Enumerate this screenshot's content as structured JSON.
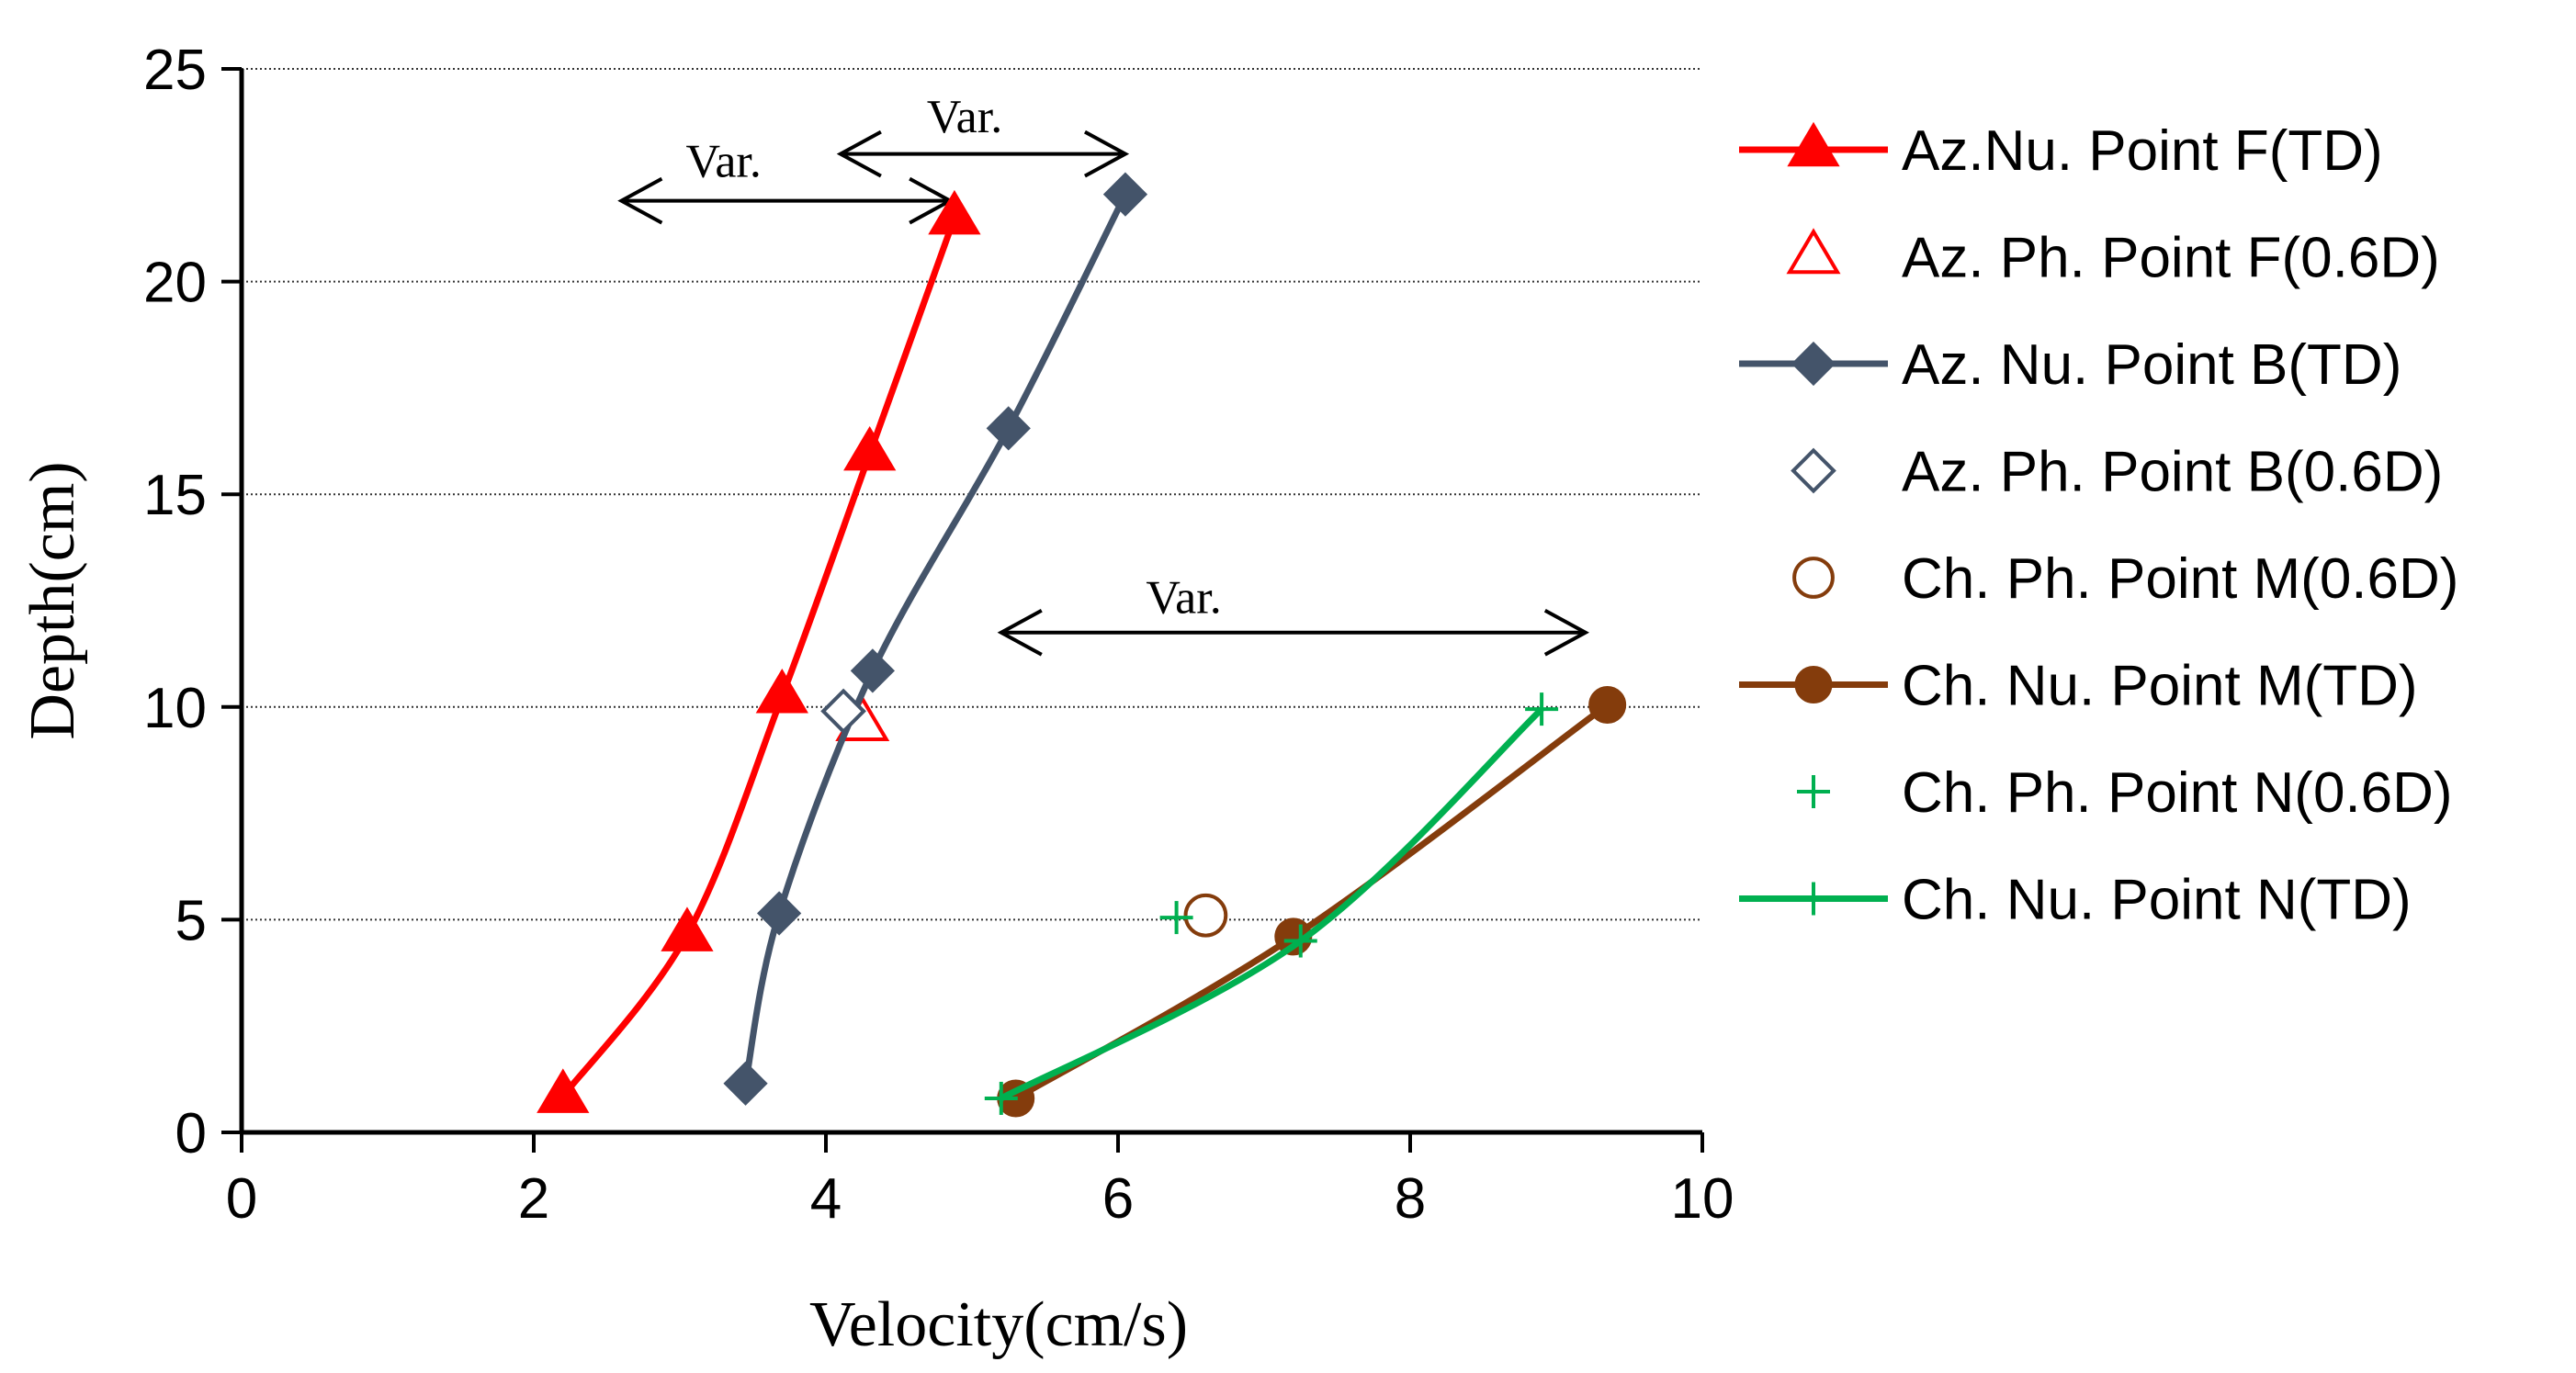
{
  "chart_data": {
    "type": "line",
    "title": "",
    "xlabel": "Velocity(cm/s)",
    "ylabel": "Depth(cm)",
    "xlim": [
      0,
      10
    ],
    "ylim": [
      0,
      25
    ],
    "xticks": [
      0,
      2,
      4,
      6,
      8,
      10
    ],
    "yticks": [
      0,
      5,
      10,
      15,
      20,
      25
    ],
    "grid": "horizontal dotted",
    "legend_position": "right",
    "series": [
      {
        "name": "Az.Nu. Point F(TD)",
        "marker": "triangle-filled",
        "line": true,
        "color": "#ff0000",
        "x": [
          2.2,
          3.05,
          3.7,
          4.3,
          4.88
        ],
        "y": [
          0.85,
          4.65,
          10.25,
          15.95,
          21.5
        ]
      },
      {
        "name": "Az. Ph. Point F(0.6D)",
        "marker": "triangle-open",
        "line": false,
        "color": "#ff0000",
        "x": [
          4.25
        ],
        "y": [
          9.6
        ]
      },
      {
        "name": "Az. Nu. Point B(TD)",
        "marker": "diamond-filled",
        "line": true,
        "color": "#44546a",
        "x": [
          3.45,
          3.68,
          4.32,
          5.25,
          6.05
        ],
        "y": [
          1.15,
          5.15,
          10.85,
          16.55,
          22.05
        ]
      },
      {
        "name": "Az. Ph. Point B(0.6D)",
        "marker": "diamond-open",
        "line": false,
        "color": "#44546a",
        "x": [
          4.12
        ],
        "y": [
          9.9
        ]
      },
      {
        "name": "Ch. Ph. Point M(0.6D)",
        "marker": "circle-open",
        "line": false,
        "color": "#843c0c",
        "x": [
          6.6
        ],
        "y": [
          5.1
        ]
      },
      {
        "name": "Ch. Nu. Point M(TD)",
        "marker": "circle-filled",
        "line": true,
        "color": "#843c0c",
        "x": [
          5.3,
          7.2,
          9.35
        ],
        "y": [
          0.8,
          4.6,
          10.05
        ]
      },
      {
        "name": "Ch. Ph. Point N(0.6D)",
        "marker": "plus",
        "line": false,
        "color": "#00b050",
        "x": [
          6.4
        ],
        "y": [
          5.05
        ]
      },
      {
        "name": "Ch. Nu. Point N(TD)",
        "marker": "plus",
        "line": true,
        "color": "#00b050",
        "x": [
          5.2,
          7.25,
          8.9
        ],
        "y": [
          0.8,
          4.5,
          9.95
        ]
      }
    ],
    "annotations": [
      {
        "text": "Var.",
        "x1": 2.6,
        "x2": 4.85,
        "y": 21.9,
        "label_x": 3.3,
        "label_y": 22.85
      },
      {
        "text": "Var.",
        "x1": 4.1,
        "x2": 6.05,
        "y": 23.0,
        "label_x": 4.95,
        "label_y": 23.9
      },
      {
        "text": "Var.",
        "x1": 5.2,
        "x2": 9.2,
        "y": 11.75,
        "label_x": 6.45,
        "label_y": 12.6
      }
    ]
  }
}
